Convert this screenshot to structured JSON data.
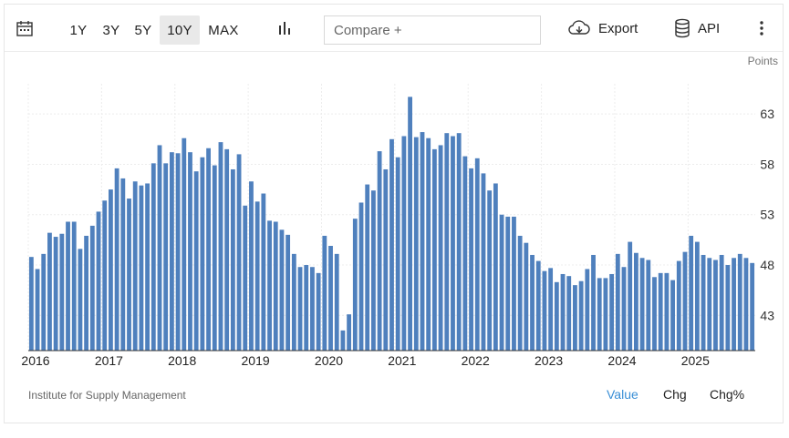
{
  "toolbar": {
    "ranges": [
      "1Y",
      "3Y",
      "5Y",
      "10Y",
      "MAX"
    ],
    "active_range": "10Y",
    "compare_placeholder": "Compare +",
    "export_label": "Export",
    "api_label": "API"
  },
  "units_label": "Points",
  "source_label": "Institute for Supply Management",
  "view_buttons": [
    "Value",
    "Chg",
    "Chg%"
  ],
  "active_view": "Value",
  "colors": {
    "bar": "#4f80bd",
    "accent": "#3a8fd6"
  },
  "chart_data": {
    "type": "bar",
    "title": "",
    "xlabel": "",
    "ylabel": "Points",
    "ylim": [
      39.5,
      66
    ],
    "y_ticks": [
      43,
      48,
      53,
      58,
      63
    ],
    "x_tick_labels": [
      "2016",
      "2017",
      "2018",
      "2019",
      "2020",
      "2021",
      "2022",
      "2023",
      "2024",
      "2025"
    ],
    "start": "2016-01",
    "values": [
      48.8,
      47.6,
      49.1,
      51.2,
      50.8,
      51.1,
      52.3,
      52.3,
      49.6,
      50.9,
      51.9,
      53.3,
      54.4,
      55.5,
      57.6,
      56.6,
      54.6,
      56.3,
      55.9,
      56.1,
      58.1,
      59.9,
      58.1,
      59.2,
      59.1,
      60.6,
      59.2,
      57.3,
      58.7,
      59.6,
      57.9,
      60.2,
      59.5,
      57.5,
      59.0,
      53.9,
      56.3,
      54.3,
      55.1,
      52.4,
      52.3,
      51.5,
      51.0,
      49.1,
      47.8,
      48.0,
      47.8,
      47.2,
      50.9,
      49.9,
      49.1,
      41.5,
      43.1,
      52.6,
      54.2,
      56.0,
      55.4,
      59.3,
      57.5,
      60.5,
      58.7,
      60.8,
      64.7,
      60.7,
      61.2,
      60.6,
      59.5,
      59.9,
      61.1,
      60.8,
      61.1,
      58.8,
      57.6,
      58.6,
      57.1,
      55.4,
      56.1,
      53.0,
      52.8,
      52.8,
      50.9,
      50.2,
      49.0,
      48.4,
      47.4,
      47.7,
      46.3,
      47.1,
      46.9,
      46.0,
      46.4,
      47.6,
      49.0,
      46.7,
      46.7,
      47.1,
      49.1,
      47.8,
      50.3,
      49.2,
      48.7,
      48.5,
      46.8,
      47.2,
      47.2,
      46.5,
      48.4,
      49.3,
      50.9,
      50.3,
      49.0,
      48.7,
      48.5,
      49.0,
      48.0,
      48.7,
      49.1,
      48.7,
      48.2
    ]
  }
}
